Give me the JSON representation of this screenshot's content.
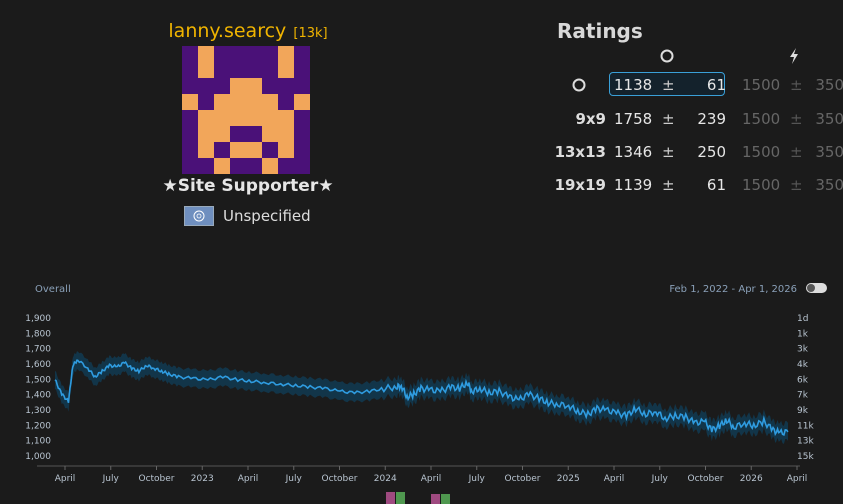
{
  "profile": {
    "username": "lanny.searcy",
    "rank": "[13k]",
    "badge": "★Site Supporter★",
    "country": "Unspecified",
    "avatar_colors": {
      "bg": "#4a1178",
      "fg": "#f2a65a"
    }
  },
  "ratings": {
    "title": "Ratings",
    "col_icons": [
      "circle-icon",
      "lightning-icon"
    ],
    "rows": [
      {
        "label": "",
        "value": "1138",
        "pm": "±",
        "dev": "61",
        "dvalue": "1500",
        "dpm": "±",
        "ddev": "350"
      },
      {
        "label": "9x9",
        "value": "1758",
        "pm": "±",
        "dev": "239",
        "dvalue": "1500",
        "dpm": "±",
        "ddev": "350"
      },
      {
        "label": "13x13",
        "value": "1346",
        "pm": "±",
        "dev": "250",
        "dvalue": "1500",
        "dpm": "±",
        "ddev": "350"
      },
      {
        "label": "19x19",
        "value": "1139",
        "pm": "±",
        "dev": "61",
        "dvalue": "1500",
        "dpm": "±",
        "ddev": "350"
      }
    ]
  },
  "chart_data": {
    "type": "line",
    "title": "Overall",
    "date_range": "Feb 1, 2022 - Apr 1, 2026",
    "y_ticks": [
      "1,900",
      "1,800",
      "1,700",
      "1,600",
      "1,500",
      "1,400",
      "1,300",
      "1,200",
      "1,100",
      "1,000"
    ],
    "y_right_ticks": [
      "1d",
      "1k",
      "3k",
      "4k",
      "6k",
      "7k",
      "9k",
      "11k",
      "13k",
      "15k"
    ],
    "x_ticks": [
      "April",
      "July",
      "October",
      "2023",
      "April",
      "July",
      "October",
      "2024",
      "April",
      "July",
      "October",
      "2025",
      "April",
      "July",
      "October",
      "2026",
      "April"
    ],
    "ylim": [
      970,
      1930
    ],
    "x_start": "2022-02-01",
    "x_end": "2026-04-01",
    "series": [
      {
        "x": [
          "2022-02-01",
          "2022-02-15",
          "2022-03-01",
          "2022-03-10",
          "2022-03-20",
          "2022-04-10",
          "2022-04-25",
          "2022-05-10",
          "2022-05-25",
          "2022-06-10",
          "2022-06-25",
          "2022-07-10",
          "2022-07-25",
          "2022-08-10",
          "2022-08-25",
          "2022-09-10",
          "2022-09-25",
          "2022-10-15",
          "2022-11-15",
          "2022-12-15",
          "2023-01-15",
          "2023-02-15",
          "2023-03-15",
          "2023-04-15",
          "2023-05-15",
          "2023-06-15",
          "2023-07-15",
          "2023-08-15",
          "2023-09-15",
          "2023-10-15",
          "2023-11-15",
          "2023-12-15",
          "2024-01-10",
          "2024-01-20",
          "2024-02-01",
          "2024-02-15",
          "2024-03-01",
          "2024-03-20",
          "2024-04-10",
          "2024-05-01",
          "2024-05-20",
          "2024-06-05",
          "2024-06-15",
          "2024-07-01",
          "2024-07-20",
          "2024-08-10",
          "2024-09-01",
          "2024-09-20",
          "2024-10-10",
          "2024-11-01",
          "2024-11-20",
          "2024-12-10",
          "2025-01-01",
          "2025-01-20",
          "2025-02-10",
          "2025-03-01",
          "2025-03-20",
          "2025-04-10",
          "2025-05-01",
          "2025-05-20",
          "2025-06-10",
          "2025-07-01",
          "2025-07-20",
          "2025-08-10",
          "2025-09-01",
          "2025-09-20",
          "2025-10-10",
          "2025-10-25",
          "2025-11-10",
          "2025-11-25",
          "2025-12-10",
          "2026-01-01",
          "2026-01-20",
          "2026-02-10",
          "2026-03-01",
          "2026-03-15",
          "2026-04-01"
        ],
        "y": [
          1500,
          1400,
          1350,
          1600,
          1640,
          1580,
          1520,
          1560,
          1600,
          1590,
          1620,
          1580,
          1560,
          1600,
          1580,
          1560,
          1540,
          1520,
          1510,
          1500,
          1520,
          1500,
          1490,
          1480,
          1470,
          1460,
          1450,
          1440,
          1420,
          1410,
          1420,
          1440,
          1450,
          1460,
          1380,
          1400,
          1440,
          1430,
          1420,
          1450,
          1440,
          1480,
          1420,
          1440,
          1410,
          1420,
          1380,
          1360,
          1400,
          1370,
          1340,
          1330,
          1320,
          1280,
          1260,
          1300,
          1290,
          1270,
          1250,
          1300,
          1260,
          1280,
          1230,
          1250,
          1240,
          1200,
          1210,
          1150,
          1180,
          1220,
          1170,
          1200,
          1180,
          1210,
          1150,
          1130,
          1138
        ]
      }
    ]
  },
  "colors": {
    "accent": "#2f9ce0",
    "band": "#12384f",
    "gold": "#f0b400"
  }
}
